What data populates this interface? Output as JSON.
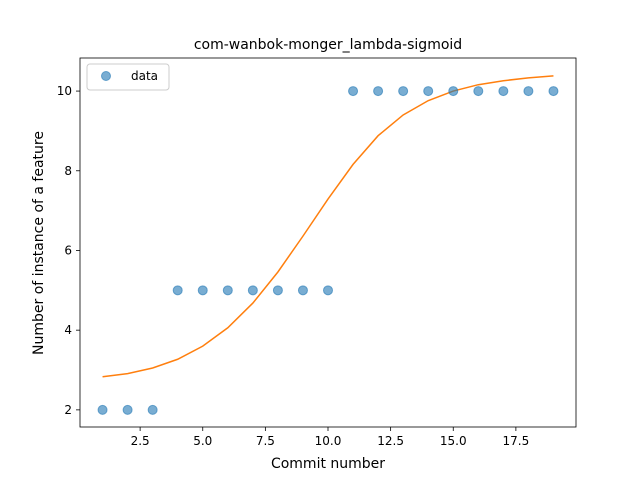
{
  "chart_data": {
    "type": "scatter",
    "title": "com-wanbok-monger_lambda-sigmoid",
    "xlabel": "Commit number",
    "ylabel": "Number of instance of a feature",
    "xlim": [
      0.1,
      19.9
    ],
    "ylim": [
      1.57,
      10.83
    ],
    "x_ticks": [
      2.5,
      5.0,
      7.5,
      10.0,
      12.5,
      15.0,
      17.5
    ],
    "x_tick_labels": [
      "2.5",
      "5.0",
      "7.5",
      "10.0",
      "12.5",
      "15.0",
      "17.5"
    ],
    "y_ticks": [
      2,
      4,
      6,
      8,
      10
    ],
    "y_tick_labels": [
      "2",
      "4",
      "6",
      "8",
      "10"
    ],
    "grid": false,
    "legend": {
      "placement": "top-left",
      "entries": [
        "data"
      ]
    },
    "series": [
      {
        "name": "data",
        "kind": "scatter",
        "color": "#1f77b4",
        "alpha": 0.6,
        "x": [
          1,
          2,
          3,
          4,
          5,
          6,
          7,
          8,
          9,
          10,
          11,
          12,
          13,
          14,
          15,
          16,
          17,
          18,
          19
        ],
        "y": [
          2,
          2,
          2,
          5,
          5,
          5,
          5,
          5,
          5,
          5,
          10,
          10,
          10,
          10,
          10,
          10,
          10,
          10,
          10
        ]
      },
      {
        "kind": "line",
        "color": "#ff7f0e",
        "x": [
          1,
          2,
          3,
          4,
          5,
          6,
          7,
          8,
          9,
          10,
          11,
          12,
          13,
          14,
          15,
          16,
          17,
          18,
          19
        ],
        "y": [
          2.83,
          2.91,
          3.05,
          3.27,
          3.6,
          4.06,
          4.68,
          5.46,
          6.36,
          7.29,
          8.16,
          8.88,
          9.4,
          9.76,
          10.0,
          10.16,
          10.26,
          10.33,
          10.38
        ]
      }
    ]
  }
}
